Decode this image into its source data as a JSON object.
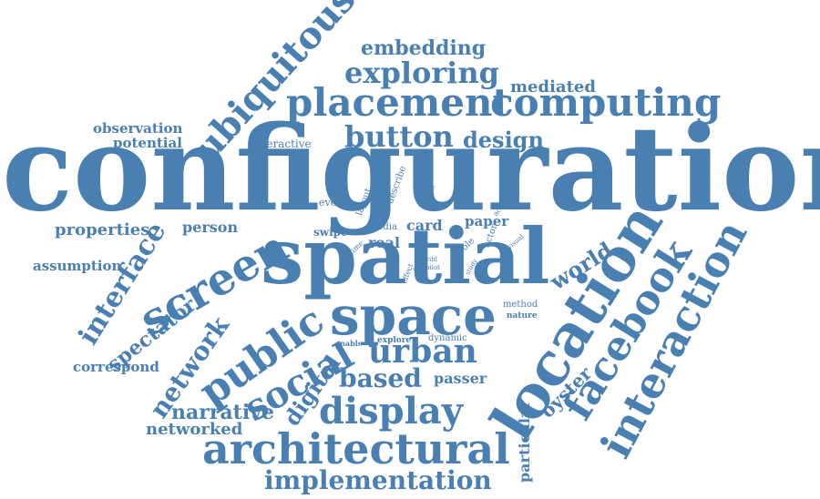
{
  "color": "#4a7fb2",
  "words": [
    {
      "id": "configuration",
      "text": "configuration"
    },
    {
      "id": "spatial",
      "text": "spatial"
    },
    {
      "id": "space",
      "text": "space"
    },
    {
      "id": "location",
      "text": "location"
    },
    {
      "id": "architectural",
      "text": "architectural"
    },
    {
      "id": "interaction",
      "text": "interaction"
    },
    {
      "id": "facebook",
      "text": "facebook"
    },
    {
      "id": "screen",
      "text": "screen"
    },
    {
      "id": "public",
      "text": "public"
    },
    {
      "id": "placement",
      "text": "placement"
    },
    {
      "id": "computing",
      "text": "computing"
    },
    {
      "id": "ubiquitous",
      "text": "ubiquitous"
    },
    {
      "id": "display",
      "text": "display"
    },
    {
      "id": "social",
      "text": "social"
    },
    {
      "id": "urban",
      "text": "urban"
    },
    {
      "id": "exploring",
      "text": "exploring"
    },
    {
      "id": "button",
      "text": "button"
    },
    {
      "id": "implementation",
      "text": "implementation"
    },
    {
      "id": "interface",
      "text": "interface"
    },
    {
      "id": "network",
      "text": "network"
    },
    {
      "id": "based",
      "text": "based"
    },
    {
      "id": "embedding",
      "text": "embedding"
    },
    {
      "id": "design",
      "text": "design"
    },
    {
      "id": "world",
      "text": "world"
    },
    {
      "id": "digital",
      "text": "digital"
    },
    {
      "id": "narrative",
      "text": "narrative"
    },
    {
      "id": "networked",
      "text": "networked"
    },
    {
      "id": "spectator",
      "text": "spectator"
    },
    {
      "id": "oyster",
      "text": "oyster"
    },
    {
      "id": "mediated",
      "text": "mediated"
    },
    {
      "id": "properties",
      "text": "properties"
    },
    {
      "id": "person",
      "text": "person"
    },
    {
      "id": "observation",
      "text": "observation"
    },
    {
      "id": "potential",
      "text": "potential"
    },
    {
      "id": "assumption",
      "text": "assumption"
    },
    {
      "id": "correspond",
      "text": "correspond"
    },
    {
      "id": "particular",
      "text": "particular"
    },
    {
      "id": "passer",
      "text": "passer"
    },
    {
      "id": "card",
      "text": "card"
    },
    {
      "id": "paper",
      "text": "paper"
    },
    {
      "id": "real",
      "text": "real"
    },
    {
      "id": "swipe",
      "text": "swipe"
    },
    {
      "id": "interactive",
      "text": "interactive"
    },
    {
      "id": "event",
      "text": "event"
    },
    {
      "id": "layout",
      "text": "layout"
    },
    {
      "id": "describe",
      "text": "describe"
    },
    {
      "id": "london",
      "text": "london"
    },
    {
      "id": "media",
      "text": "media"
    },
    {
      "id": "activity",
      "text": "activity"
    },
    {
      "id": "actor",
      "text": "actor"
    },
    {
      "id": "role",
      "text": "role"
    },
    {
      "id": "time",
      "text": "time"
    },
    {
      "id": "effect",
      "text": "effect"
    },
    {
      "id": "wild",
      "text": "wild"
    },
    {
      "id": "pilot",
      "text": "pilot"
    },
    {
      "id": "study",
      "text": "study"
    },
    {
      "id": "visual",
      "text": "visual"
    },
    {
      "id": "method",
      "text": "method"
    },
    {
      "id": "nature",
      "text": "nature"
    },
    {
      "id": "dynamic",
      "text": "dynamic"
    },
    {
      "id": "explore",
      "text": "explore"
    },
    {
      "id": "enable",
      "text": "enable"
    },
    {
      "id": "cue",
      "text": "cue"
    }
  ]
}
